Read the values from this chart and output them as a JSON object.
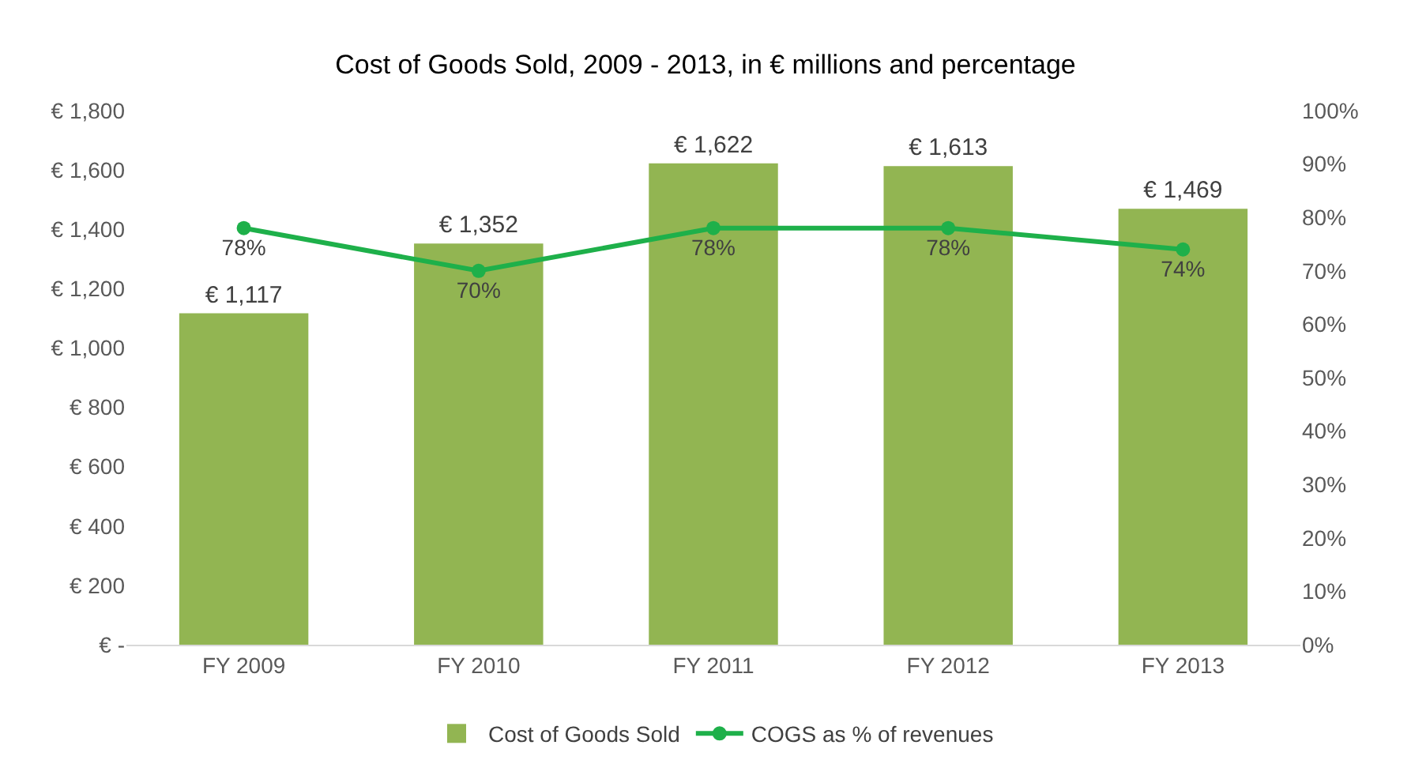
{
  "chart_data": {
    "type": "bar",
    "title": "Cost of Goods Sold, 2009 - 2013, in € millions and percentage",
    "categories": [
      "FY 2009",
      "FY 2010",
      "FY 2011",
      "FY 2012",
      "FY 2013"
    ],
    "series": [
      {
        "name": "Cost of Goods Sold",
        "color": "#92b552",
        "values": [
          1117,
          1352,
          1622,
          1613,
          1469
        ],
        "value_labels": [
          "€ 1,117",
          "€ 1,352",
          "€ 1,622",
          "€ 1,613",
          "€ 1,469"
        ]
      },
      {
        "name": "COGS as % of revenues",
        "type": "line",
        "axis": "y2",
        "color": "#1eb04a",
        "marker": "circle",
        "line_style": "solid",
        "values": [
          78,
          70,
          78,
          78,
          74
        ],
        "value_labels": [
          "78%",
          "70%",
          "78%",
          "78%",
          "74%"
        ]
      }
    ],
    "ylim": [
      0,
      1800
    ],
    "yticks": [
      {
        "value": 0,
        "label": "€ -"
      },
      {
        "value": 200,
        "label": "€ 200"
      },
      {
        "value": 400,
        "label": "€ 400"
      },
      {
        "value": 600,
        "label": "€ 600"
      },
      {
        "value": 800,
        "label": "€ 800"
      },
      {
        "value": 1000,
        "label": "€ 1,000"
      },
      {
        "value": 1200,
        "label": "€ 1,200"
      },
      {
        "value": 1400,
        "label": "€ 1,400"
      },
      {
        "value": 1600,
        "label": "€ 1,600"
      },
      {
        "value": 1800,
        "label": "€ 1,800"
      }
    ],
    "y2lim": [
      0,
      100
    ],
    "y2ticks": [
      {
        "value": 0,
        "label": "0%"
      },
      {
        "value": 10,
        "label": "10%"
      },
      {
        "value": 20,
        "label": "20%"
      },
      {
        "value": 30,
        "label": "30%"
      },
      {
        "value": 40,
        "label": "40%"
      },
      {
        "value": 50,
        "label": "50%"
      },
      {
        "value": 60,
        "label": "60%"
      },
      {
        "value": 70,
        "label": "70%"
      },
      {
        "value": 80,
        "label": "80%"
      },
      {
        "value": 90,
        "label": "90%"
      },
      {
        "value": 100,
        "label": "100%"
      }
    ],
    "grid": false,
    "legend": "bottom"
  }
}
